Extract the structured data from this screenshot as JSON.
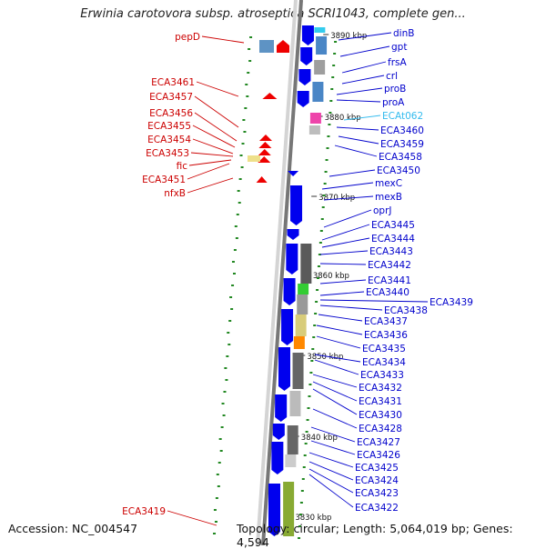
{
  "title": "Erwinia carotovora subsp. atroseptica SCRI1043, complete gen...",
  "footer": {
    "accession": "Accession: NC_004547",
    "topology": "Topology: circular; Length: 5,064,019 bp; Genes: 4,594"
  },
  "colors": {
    "left_label": "#cc0000",
    "right_label": "#0000cc",
    "trna_label": "#33bbee",
    "arrow_blue": "#0000ee",
    "arrow_red": "#ee0000",
    "tick_green": "#228822",
    "backbone": "#777777"
  },
  "ruler_labels": [
    "3890 kbp",
    "3880 kbp",
    "3870 kbp",
    "3860 kbp",
    "3850 kbp",
    "3840 kbp",
    "3830 kbp"
  ],
  "left_genes": [
    "pepD",
    "ECA3461",
    "ECA3457",
    "ECA3456",
    "ECA3455",
    "ECA3454",
    "ECA3453",
    "fic",
    "ECA3451",
    "nfxB",
    "ECA3419"
  ],
  "right_genes": [
    "dinB",
    "gpt",
    "frsA",
    "crl",
    "proB",
    "proA",
    "ECAt062",
    "ECA3460",
    "ECA3459",
    "ECA3458",
    "ECA3450",
    "mexC",
    "mexB",
    "oprJ",
    "ECA3445",
    "ECA3444",
    "ECA3443",
    "ECA3442",
    "ECA3441",
    "ECA3440",
    "ECA3439",
    "ECA3438",
    "ECA3437",
    "ECA3436",
    "ECA3435",
    "ECA3434",
    "ECA3433",
    "ECA3432",
    "ECA3431",
    "ECA3430",
    "ECA3428",
    "ECA3427",
    "ECA3426",
    "ECA3425",
    "ECA3424",
    "ECA3423",
    "ECA3422"
  ]
}
